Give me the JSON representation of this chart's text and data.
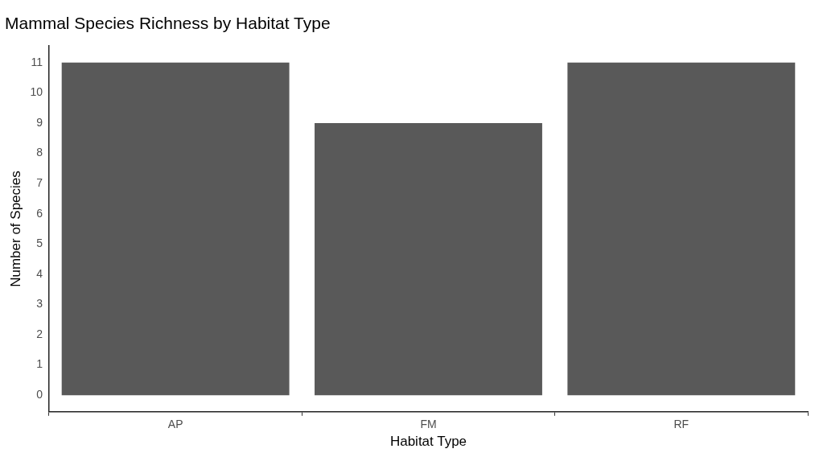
{
  "chart_data": {
    "type": "bar",
    "title": "Mammal Species Richness by Habitat Type",
    "xlabel": "Habitat Type",
    "ylabel": "Number of Species",
    "categories": [
      "AP",
      "FM",
      "RF"
    ],
    "values": [
      11,
      9,
      11
    ],
    "color": "#595959",
    "ylim": [
      -0.55,
      11.55
    ],
    "yticks": [
      0,
      1,
      2,
      3,
      4,
      5,
      6,
      7,
      8,
      9,
      10,
      11
    ],
    "grid": false,
    "legend": false
  }
}
